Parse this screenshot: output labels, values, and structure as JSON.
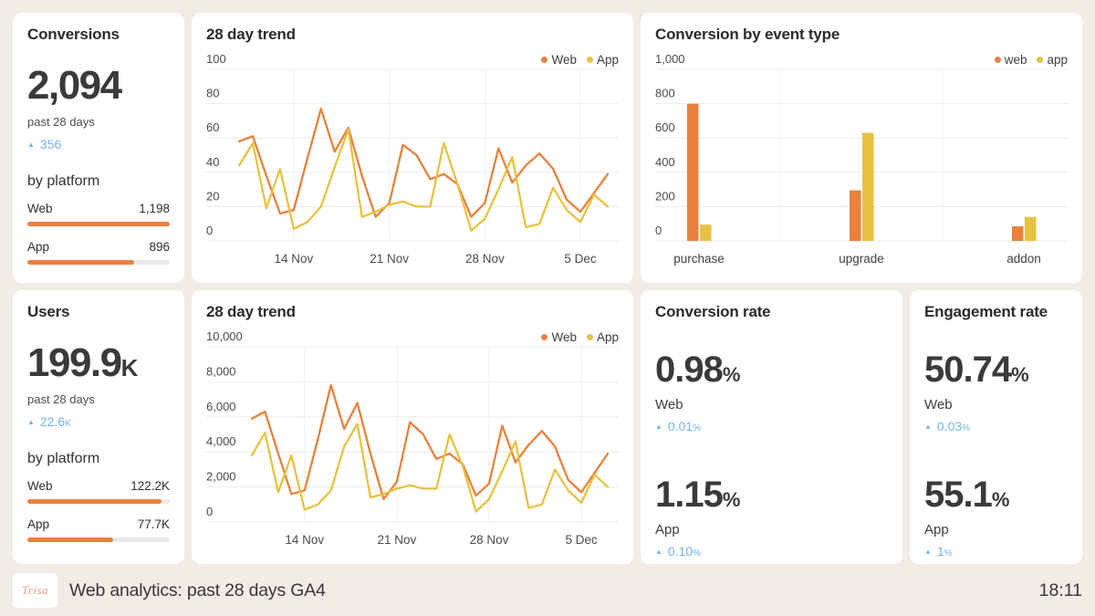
{
  "page": {
    "background": "#f1ece5",
    "footer": {
      "logo_text": "Trisa",
      "title": "Web analytics: past 28 days GA4",
      "time": "18:11"
    }
  },
  "colors": {
    "web_orange": "#e8813c",
    "app_yellow": "#e7c242",
    "delta_blue": "#74b3e8"
  },
  "cards": {
    "conversions": {
      "title": "Conversions",
      "value": "2,094",
      "value_unit": "",
      "period": "past 28 days",
      "delta": {
        "value": "356",
        "unit": ""
      },
      "breakdown_label": "by platform",
      "platforms": [
        {
          "label": "Web",
          "value": "1,198",
          "pct": 100
        },
        {
          "label": "App",
          "value": "896",
          "pct": 75
        }
      ]
    },
    "conversions_trend": {
      "title": "28 day trend"
    },
    "conversion_by_event": {
      "title": "Conversion by event type"
    },
    "users": {
      "title": "Users",
      "value": "199.9",
      "value_unit": "K",
      "period": "past 28 days",
      "delta": {
        "value": "22.6",
        "unit": "K"
      },
      "breakdown_label": "by platform",
      "platforms": [
        {
          "label": "Web",
          "value": "122.2K",
          "pct": 94
        },
        {
          "label": "App",
          "value": "77.7K",
          "pct": 60
        }
      ]
    },
    "users_trend": {
      "title": "28 day trend"
    },
    "conversion_rate": {
      "title": "Conversion rate",
      "metrics": [
        {
          "value": "0.98",
          "unit": "%",
          "label": "Web",
          "delta": "0.01",
          "delta_unit": "%"
        },
        {
          "value": "1.15",
          "unit": "%",
          "label": "App",
          "delta": "0.10",
          "delta_unit": "%"
        }
      ]
    },
    "engagement_rate": {
      "title": "Engagement rate",
      "metrics": [
        {
          "value": "50.74",
          "unit": "%",
          "label": "Web",
          "delta": "0.03",
          "delta_unit": "%"
        },
        {
          "value": "55.1",
          "unit": "%",
          "label": "App",
          "delta": "1",
          "delta_unit": "%"
        }
      ]
    }
  },
  "chart_data": [
    {
      "id": "conversions_28_day_trend",
      "type": "line",
      "title": "28 day trend",
      "n_points": 28,
      "x_ticks": [
        {
          "label": "14 Nov",
          "index": 4
        },
        {
          "label": "21 Nov",
          "index": 11
        },
        {
          "label": "28 Nov",
          "index": 18
        },
        {
          "label": "5 Dec",
          "index": 25
        }
      ],
      "ylim": [
        0,
        100
      ],
      "yticks": [
        0,
        20,
        40,
        60,
        80,
        100
      ],
      "ytick_labels": [
        "0",
        "20",
        "40",
        "60",
        "80",
        "100"
      ],
      "grid": true,
      "legend_position": "top-right",
      "series": [
        {
          "name": "Web",
          "color": "#e8813c",
          "values": [
            58,
            61,
            38,
            16,
            18,
            48,
            77,
            52,
            66,
            38,
            14,
            22,
            56,
            50,
            36,
            39,
            33,
            14,
            22,
            54,
            34,
            44,
            51,
            42,
            24,
            17,
            28,
            39
          ]
        },
        {
          "name": "App",
          "color": "#e7c242",
          "values": [
            44,
            57,
            19,
            42,
            7,
            11,
            20,
            43,
            65,
            14,
            17,
            21,
            23,
            20,
            20,
            57,
            33,
            6,
            13,
            30,
            49,
            8,
            10,
            31,
            18,
            11,
            27,
            20
          ]
        }
      ]
    },
    {
      "id": "users_28_day_trend",
      "type": "line",
      "title": "28 day trend",
      "n_points": 28,
      "x_ticks": [
        {
          "label": "14 Nov",
          "index": 4
        },
        {
          "label": "21 Nov",
          "index": 11
        },
        {
          "label": "28 Nov",
          "index": 18
        },
        {
          "label": "5 Dec",
          "index": 25
        }
      ],
      "ylim": [
        0,
        10000
      ],
      "yticks": [
        0,
        2000,
        4000,
        6000,
        8000,
        10000
      ],
      "ytick_labels": [
        "0",
        "2,000",
        "4,000",
        "6,000",
        "8,000",
        "10,000"
      ],
      "grid": true,
      "legend_position": "top-right",
      "series": [
        {
          "name": "Web",
          "color": "#e8813c",
          "values": [
            5900,
            6300,
            3900,
            1600,
            1800,
            4700,
            7800,
            5300,
            6800,
            3900,
            1300,
            2300,
            5700,
            5000,
            3600,
            3900,
            3300,
            1500,
            2200,
            5500,
            3400,
            4400,
            5200,
            4300,
            2400,
            1700,
            2800,
            3900
          ]
        },
        {
          "name": "App",
          "color": "#e7c242",
          "values": [
            3800,
            5100,
            1700,
            3800,
            700,
            1000,
            1800,
            4300,
            5600,
            1400,
            1600,
            1900,
            2100,
            1900,
            1900,
            5000,
            3200,
            600,
            1300,
            2900,
            4600,
            800,
            1000,
            3000,
            1800,
            1100,
            2700,
            2000
          ]
        }
      ]
    },
    {
      "id": "conversion_by_event_type",
      "type": "bar",
      "title": "Conversion by event type",
      "categories": [
        "purchase",
        "upgrade",
        "addon"
      ],
      "ylim": [
        0,
        1000
      ],
      "yticks": [
        0,
        200,
        400,
        600,
        800,
        1000
      ],
      "ytick_labels": [
        "0",
        "200",
        "400",
        "600",
        "800",
        "1,000"
      ],
      "grid": true,
      "legend_position": "top-right",
      "series": [
        {
          "name": "web",
          "color": "#e8813c",
          "values": [
            800,
            295,
            85
          ]
        },
        {
          "name": "app",
          "color": "#e7c242",
          "values": [
            95,
            630,
            140
          ]
        }
      ]
    }
  ]
}
